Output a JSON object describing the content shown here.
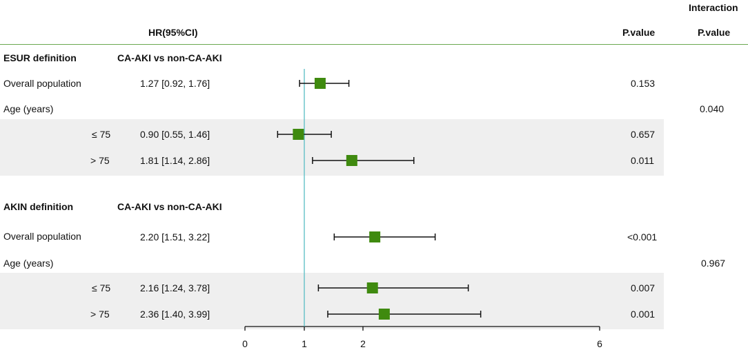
{
  "header": {
    "hr_label": "HR(95%CI)",
    "pvalue_label": "P.value",
    "interaction_label": "Interaction",
    "interaction_pvalue_label": "P.value"
  },
  "colors": {
    "marker": "#3f8a0f",
    "reference_line": "#56bcc4",
    "header_rule": "#6aa84f",
    "band": "#efefef"
  },
  "sections": [
    {
      "title": "ESUR definition",
      "comparison": "CA-AKI  vs  non-CA-AKI",
      "overall": {
        "label": "Overall population",
        "hr_text": "1.27 [0.92, 1.76]",
        "pvalue": "0.153"
      },
      "age": {
        "label": "Age (years)",
        "interaction_pvalue": "0.040"
      },
      "subgroups": [
        {
          "label": "≤ 75",
          "hr_text": "0.90 [0.55, 1.46]",
          "pvalue": "0.657"
        },
        {
          "label": "> 75",
          "hr_text": "1.81 [1.14, 2.86]",
          "pvalue": "0.011"
        }
      ]
    },
    {
      "title": "AKIN definition",
      "comparison": "CA-AKI  vs  non-CA-AKI",
      "overall": {
        "label": "Overall population",
        "hr_text": "2.20 [1.51, 3.22]",
        "pvalue": "<0.001"
      },
      "age": {
        "label": "Age (years)",
        "interaction_pvalue": "0.967"
      },
      "subgroups": [
        {
          "label": "≤ 75",
          "hr_text": "2.16 [1.24, 3.78]",
          "pvalue": "0.007"
        },
        {
          "label": "> 75",
          "hr_text": "2.36 [1.40, 3.99]",
          "pvalue": "0.001"
        }
      ]
    }
  ],
  "chart_data": {
    "type": "scatter",
    "title": "",
    "xlabel": "",
    "ylabel": "",
    "xlim": [
      0,
      6
    ],
    "xticks": [
      0,
      1,
      2,
      6
    ],
    "reference_line": 1,
    "grid": false,
    "legend": "none",
    "series": [
      {
        "rows": [
          "ESUR Overall population",
          "ESUR ≤ 75",
          "ESUR > 75",
          "AKIN Overall population",
          "AKIN ≤ 75",
          "AKIN > 75"
        ],
        "hr": [
          1.27,
          0.9,
          1.81,
          2.2,
          2.16,
          2.36
        ],
        "lower": [
          0.92,
          0.55,
          1.14,
          1.51,
          1.24,
          1.4
        ],
        "upper": [
          1.76,
          1.46,
          2.86,
          3.22,
          3.78,
          3.99
        ]
      }
    ]
  }
}
